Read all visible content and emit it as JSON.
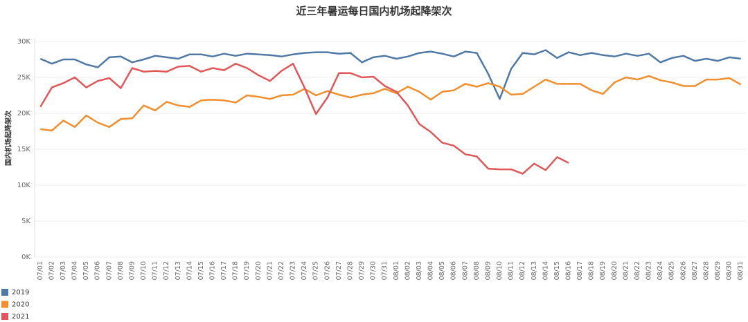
{
  "chart_data": {
    "type": "line",
    "title": "近三年暑运每日国内机场起降架次",
    "y_label": "国内机场起降架次",
    "categories": [
      "07/01",
      "07/02",
      "07/03",
      "07/04",
      "07/05",
      "07/06",
      "07/07",
      "07/08",
      "07/09",
      "07/10",
      "07/11",
      "07/12",
      "07/13",
      "07/14",
      "07/15",
      "07/16",
      "07/17",
      "07/18",
      "07/19",
      "07/20",
      "07/21",
      "07/22",
      "07/23",
      "07/24",
      "07/25",
      "07/26",
      "07/27",
      "07/28",
      "07/29",
      "07/30",
      "07/31",
      "08/01",
      "08/02",
      "08/03",
      "08/04",
      "08/05",
      "08/06",
      "08/07",
      "08/08",
      "08/09",
      "08/10",
      "08/11",
      "08/12",
      "08/13",
      "08/14",
      "08/15",
      "08/16",
      "08/17",
      "08/18",
      "08/19",
      "08/20",
      "08/21",
      "08/22",
      "08/23",
      "08/24",
      "08/25",
      "08/26",
      "08/27",
      "08/28",
      "08/29",
      "08/30",
      "08/31"
    ],
    "series": [
      {
        "name": "2019",
        "color": "#4e79a7",
        "values": [
          27600,
          26900,
          27500,
          27500,
          26800,
          26400,
          27800,
          27900,
          27100,
          27500,
          28000,
          27800,
          27600,
          28200,
          28200,
          27900,
          28300,
          28000,
          28300,
          28200,
          28100,
          27900,
          28200,
          28400,
          28500,
          28500,
          28300,
          28400,
          27100,
          27800,
          28000,
          27600,
          27900,
          28400,
          28600,
          28300,
          27900,
          28600,
          28400,
          25500,
          22000,
          26200,
          28400,
          28200,
          28800,
          27700,
          28500,
          28100,
          28400,
          28100,
          27900,
          28300,
          28000,
          28300,
          27100,
          27700,
          28000,
          27300,
          27600,
          27300,
          27800,
          27600
        ]
      },
      {
        "name": "2020",
        "color": "#f28e2b",
        "values": [
          17800,
          17600,
          19000,
          18100,
          19700,
          18700,
          18100,
          19200,
          19300,
          21100,
          20400,
          21600,
          21100,
          20900,
          21800,
          21900,
          21800,
          21500,
          22500,
          22300,
          22000,
          22500,
          22600,
          23400,
          22500,
          23100,
          22600,
          22200,
          22600,
          22800,
          23400,
          22800,
          23700,
          23000,
          21900,
          23000,
          23200,
          24100,
          23700,
          24200,
          23700,
          22600,
          22700,
          23700,
          24700,
          24100,
          24100,
          24100,
          23200,
          22700,
          24300,
          25000,
          24700,
          25200,
          24600,
          24300,
          23800,
          23800,
          24700,
          24700,
          24900,
          24000
        ]
      },
      {
        "name": "2021",
        "color": "#e15759",
        "values": [
          20900,
          23600,
          24200,
          25000,
          23600,
          24500,
          24900,
          23500,
          26300,
          25800,
          25900,
          25800,
          26500,
          26600,
          25800,
          26300,
          26000,
          26900,
          26300,
          25300,
          24500,
          25900,
          26900,
          23600,
          19900,
          22200,
          25600,
          25600,
          25000,
          25100,
          23800,
          23000,
          21100,
          18500,
          17400,
          15900,
          15500,
          14300,
          14000,
          12300,
          12200,
          12200,
          11600,
          13000,
          12100,
          13900,
          13100,
          null,
          null,
          null,
          null,
          null,
          null,
          null,
          null,
          null,
          null,
          null,
          null,
          null,
          null,
          null
        ]
      }
    ],
    "ylim": [
      0,
      30000
    ],
    "yticks": [
      {
        "value": 0,
        "label": "0K"
      },
      {
        "value": 5000,
        "label": "5K"
      },
      {
        "value": 10000,
        "label": "10K"
      },
      {
        "value": 15000,
        "label": "15K"
      },
      {
        "value": 20000,
        "label": "20K"
      },
      {
        "value": 25000,
        "label": "25K"
      },
      {
        "value": 30000,
        "label": "30K"
      }
    ],
    "grid": true,
    "legend": "bottom-left"
  }
}
